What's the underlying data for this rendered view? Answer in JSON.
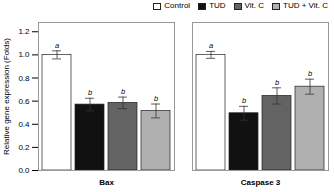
{
  "chart_data": {
    "type": "bar",
    "ylabel": "Relative gene expression (Folds)",
    "categories": [
      "Bax",
      "Caspase 3"
    ],
    "series": [
      {
        "name": "Control",
        "color": "#ffffff",
        "values": [
          1.0,
          1.0
        ],
        "errors": [
          0.035,
          0.03
        ],
        "annotations": [
          "a",
          "a"
        ]
      },
      {
        "name": "TUD",
        "color": "#111111",
        "values": [
          0.57,
          0.495
        ],
        "errors": [
          0.055,
          0.06
        ],
        "annotations": [
          "b",
          "b"
        ]
      },
      {
        "name": "Vit. C",
        "color": "#636363",
        "values": [
          0.585,
          0.645
        ],
        "errors": [
          0.05,
          0.07
        ],
        "annotations": [
          "b",
          "b"
        ]
      },
      {
        "name": "TUD + Vit. C",
        "color": "#b0b0b0",
        "values": [
          0.515,
          0.725
        ],
        "errors": [
          0.06,
          0.065
        ],
        "annotations": [
          "b",
          "b"
        ]
      }
    ],
    "ylim": [
      0,
      1.28
    ],
    "yticks": [
      {
        "value": 0.0,
        "label": "0.0"
      },
      0.2,
      0.4,
      0.6,
      0.8,
      {
        "value": 1.0,
        "label": "1.0"
      },
      1.2
    ],
    "legend": "upper right"
  }
}
